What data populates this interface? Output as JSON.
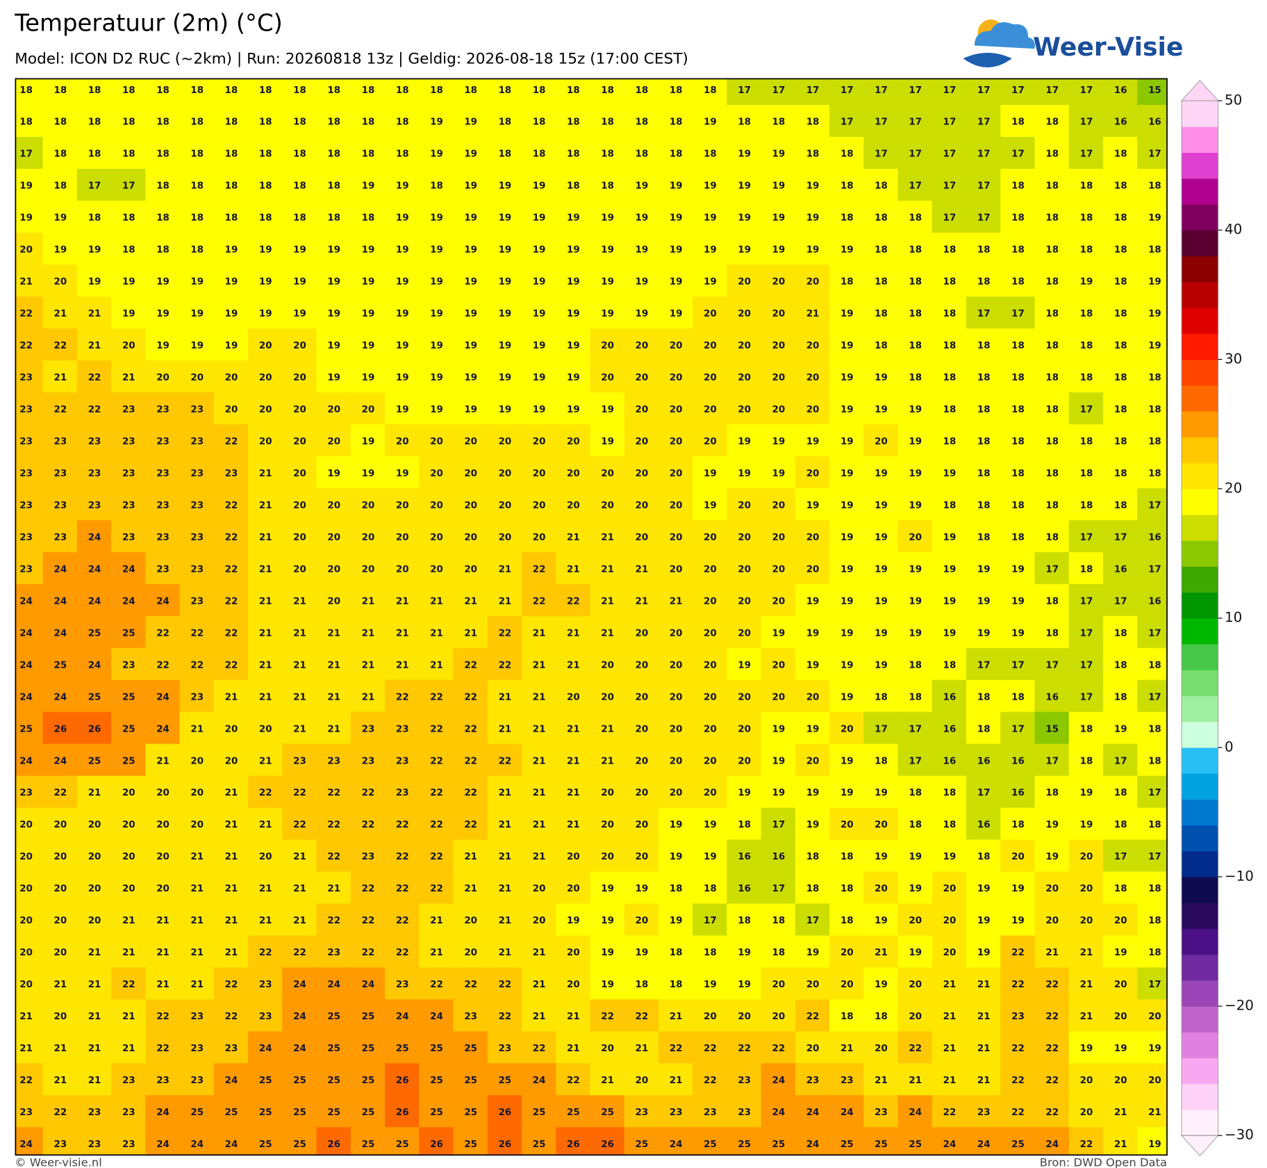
{
  "chart_data": {
    "type": "heatmap",
    "title": "Temperatuur (2m) (°C)",
    "subtitle": "Model: ICON D2 RUC (~2km)  |  Run: 20260818 13z  |  Geldig: 2026-08-18 15z (17:00 CEST)",
    "logo": "Weer-Visie",
    "footer_left": "© Weer-visie.nl",
    "footer_right": "Bron: DWD Open Data",
    "values": [
      [
        18,
        18,
        18,
        18,
        18,
        18,
        18,
        18,
        18,
        18,
        18,
        18,
        18,
        18,
        18,
        18,
        18,
        18,
        18,
        18,
        18,
        17,
        17,
        17,
        17,
        17,
        17,
        17,
        17,
        17,
        17,
        17,
        16,
        15
      ],
      [
        18,
        18,
        18,
        18,
        18,
        18,
        18,
        18,
        18,
        18,
        18,
        18,
        19,
        19,
        18,
        18,
        18,
        18,
        18,
        18,
        19,
        18,
        18,
        18,
        17,
        17,
        17,
        17,
        17,
        18,
        18,
        17,
        16,
        16
      ],
      [
        17,
        18,
        18,
        18,
        18,
        18,
        18,
        18,
        18,
        18,
        18,
        18,
        19,
        19,
        18,
        18,
        18,
        18,
        18,
        18,
        18,
        19,
        19,
        18,
        18,
        17,
        17,
        17,
        17,
        17,
        18,
        17,
        18,
        17
      ],
      [
        19,
        18,
        17,
        17,
        18,
        18,
        18,
        18,
        18,
        18,
        19,
        19,
        18,
        19,
        19,
        19,
        18,
        18,
        19,
        19,
        19,
        19,
        19,
        19,
        18,
        18,
        17,
        17,
        17,
        18,
        18,
        18,
        18,
        18
      ],
      [
        19,
        19,
        18,
        18,
        18,
        18,
        18,
        18,
        18,
        18,
        18,
        19,
        19,
        19,
        19,
        19,
        19,
        19,
        19,
        19,
        19,
        19,
        19,
        19,
        18,
        18,
        18,
        17,
        17,
        18,
        18,
        18,
        18,
        19
      ],
      [
        20,
        19,
        19,
        18,
        18,
        18,
        19,
        19,
        19,
        19,
        19,
        19,
        19,
        19,
        19,
        19,
        19,
        19,
        19,
        19,
        19,
        19,
        19,
        19,
        19,
        18,
        18,
        18,
        18,
        18,
        18,
        18,
        18,
        18
      ],
      [
        21,
        20,
        19,
        19,
        19,
        19,
        19,
        19,
        19,
        19,
        19,
        19,
        19,
        19,
        19,
        19,
        19,
        19,
        19,
        19,
        19,
        20,
        20,
        20,
        18,
        18,
        18,
        18,
        18,
        18,
        18,
        19,
        18,
        19
      ],
      [
        22,
        21,
        21,
        19,
        19,
        19,
        19,
        19,
        19,
        19,
        19,
        19,
        19,
        19,
        19,
        19,
        19,
        19,
        19,
        19,
        20,
        20,
        20,
        21,
        19,
        18,
        18,
        18,
        17,
        17,
        18,
        18,
        18,
        19
      ],
      [
        22,
        22,
        21,
        20,
        19,
        19,
        19,
        20,
        20,
        19,
        19,
        19,
        19,
        19,
        19,
        19,
        19,
        20,
        20,
        20,
        20,
        20,
        20,
        20,
        19,
        18,
        18,
        18,
        18,
        18,
        18,
        18,
        18,
        19
      ],
      [
        23,
        21,
        22,
        21,
        20,
        20,
        20,
        20,
        20,
        19,
        19,
        19,
        19,
        19,
        19,
        19,
        19,
        20,
        20,
        20,
        20,
        20,
        20,
        20,
        19,
        19,
        18,
        18,
        18,
        18,
        18,
        18,
        18,
        18
      ],
      [
        23,
        22,
        22,
        23,
        23,
        23,
        20,
        20,
        20,
        20,
        20,
        19,
        19,
        19,
        19,
        19,
        19,
        19,
        20,
        20,
        20,
        20,
        20,
        20,
        19,
        19,
        19,
        18,
        18,
        18,
        18,
        17,
        18,
        18
      ],
      [
        23,
        23,
        23,
        23,
        23,
        23,
        22,
        20,
        20,
        20,
        19,
        20,
        20,
        20,
        20,
        20,
        20,
        19,
        20,
        20,
        20,
        19,
        19,
        19,
        19,
        20,
        19,
        18,
        18,
        18,
        18,
        18,
        18,
        18
      ],
      [
        23,
        23,
        23,
        23,
        23,
        23,
        23,
        21,
        20,
        19,
        19,
        19,
        20,
        20,
        20,
        20,
        20,
        20,
        20,
        20,
        19,
        19,
        19,
        20,
        19,
        19,
        19,
        19,
        18,
        18,
        18,
        18,
        18,
        18
      ],
      [
        23,
        23,
        23,
        23,
        23,
        23,
        22,
        21,
        20,
        20,
        20,
        20,
        20,
        20,
        20,
        20,
        20,
        20,
        20,
        20,
        19,
        20,
        20,
        19,
        19,
        19,
        19,
        18,
        18,
        18,
        18,
        18,
        18,
        17
      ],
      [
        23,
        23,
        24,
        23,
        23,
        23,
        22,
        21,
        20,
        20,
        20,
        20,
        20,
        20,
        20,
        20,
        21,
        21,
        20,
        20,
        20,
        20,
        20,
        20,
        19,
        19,
        20,
        19,
        18,
        18,
        18,
        17,
        17,
        16
      ],
      [
        23,
        24,
        24,
        24,
        23,
        23,
        22,
        21,
        20,
        20,
        20,
        20,
        20,
        20,
        21,
        22,
        21,
        21,
        21,
        20,
        20,
        20,
        20,
        20,
        19,
        19,
        19,
        19,
        19,
        19,
        17,
        18,
        16,
        17
      ],
      [
        24,
        24,
        24,
        24,
        24,
        23,
        22,
        21,
        21,
        20,
        21,
        21,
        21,
        21,
        21,
        22,
        22,
        21,
        21,
        21,
        20,
        20,
        20,
        19,
        19,
        19,
        19,
        19,
        19,
        19,
        18,
        17,
        17,
        16
      ],
      [
        24,
        24,
        25,
        25,
        22,
        22,
        22,
        21,
        21,
        21,
        21,
        21,
        21,
        21,
        22,
        21,
        21,
        21,
        20,
        20,
        20,
        20,
        19,
        19,
        19,
        19,
        19,
        19,
        19,
        19,
        18,
        17,
        18,
        17
      ],
      [
        24,
        25,
        24,
        23,
        22,
        22,
        22,
        21,
        21,
        21,
        21,
        21,
        21,
        22,
        22,
        21,
        21,
        20,
        20,
        20,
        20,
        19,
        20,
        19,
        19,
        19,
        18,
        18,
        17,
        17,
        17,
        17,
        18,
        18
      ],
      [
        24,
        24,
        25,
        25,
        24,
        23,
        21,
        21,
        21,
        21,
        21,
        22,
        22,
        22,
        21,
        21,
        20,
        20,
        20,
        20,
        20,
        20,
        20,
        20,
        19,
        18,
        18,
        16,
        18,
        18,
        16,
        17,
        18,
        17
      ],
      [
        25,
        26,
        26,
        25,
        24,
        21,
        20,
        20,
        21,
        21,
        23,
        23,
        22,
        22,
        21,
        21,
        21,
        21,
        20,
        20,
        20,
        20,
        19,
        19,
        20,
        17,
        17,
        16,
        18,
        17,
        15,
        18,
        19,
        18
      ],
      [
        24,
        24,
        25,
        25,
        21,
        20,
        20,
        21,
        23,
        23,
        23,
        23,
        22,
        22,
        22,
        21,
        21,
        21,
        20,
        20,
        20,
        20,
        19,
        20,
        19,
        18,
        17,
        16,
        16,
        16,
        17,
        18,
        17,
        18
      ],
      [
        23,
        22,
        21,
        20,
        20,
        20,
        21,
        22,
        22,
        22,
        22,
        23,
        22,
        22,
        21,
        21,
        21,
        20,
        20,
        20,
        20,
        19,
        19,
        19,
        19,
        19,
        18,
        18,
        17,
        16,
        18,
        19,
        18,
        17
      ],
      [
        20,
        20,
        20,
        20,
        20,
        20,
        21,
        21,
        22,
        22,
        22,
        22,
        22,
        22,
        21,
        21,
        21,
        20,
        20,
        19,
        19,
        18,
        17,
        19,
        20,
        20,
        18,
        18,
        16,
        18,
        19,
        19,
        18,
        18
      ],
      [
        20,
        20,
        20,
        20,
        20,
        21,
        21,
        20,
        21,
        22,
        23,
        22,
        22,
        21,
        21,
        21,
        20,
        20,
        20,
        19,
        19,
        16,
        16,
        18,
        18,
        19,
        19,
        19,
        18,
        20,
        19,
        20,
        17,
        17
      ],
      [
        20,
        20,
        20,
        20,
        20,
        21,
        21,
        21,
        21,
        21,
        22,
        22,
        22,
        21,
        21,
        20,
        20,
        19,
        19,
        18,
        18,
        16,
        17,
        18,
        18,
        20,
        19,
        20,
        19,
        19,
        20,
        20,
        18,
        18
      ],
      [
        20,
        20,
        20,
        21,
        21,
        21,
        21,
        21,
        21,
        22,
        22,
        22,
        21,
        20,
        21,
        20,
        19,
        19,
        20,
        19,
        17,
        18,
        18,
        17,
        18,
        19,
        20,
        20,
        19,
        19,
        20,
        20,
        20,
        18
      ],
      [
        20,
        20,
        21,
        21,
        21,
        21,
        21,
        22,
        22,
        23,
        22,
        22,
        21,
        20,
        21,
        21,
        20,
        19,
        19,
        18,
        18,
        19,
        18,
        19,
        20,
        21,
        19,
        20,
        19,
        22,
        21,
        21,
        19,
        18
      ],
      [
        20,
        21,
        21,
        22,
        21,
        21,
        22,
        23,
        24,
        24,
        24,
        23,
        22,
        22,
        22,
        21,
        20,
        19,
        18,
        18,
        19,
        19,
        20,
        20,
        20,
        19,
        20,
        21,
        21,
        22,
        22,
        21,
        20,
        17
      ],
      [
        21,
        20,
        21,
        21,
        22,
        23,
        22,
        23,
        24,
        25,
        25,
        24,
        24,
        23,
        22,
        21,
        21,
        22,
        22,
        21,
        20,
        20,
        20,
        22,
        18,
        18,
        20,
        21,
        21,
        23,
        22,
        21,
        20,
        20
      ],
      [
        21,
        21,
        21,
        21,
        22,
        23,
        23,
        24,
        24,
        25,
        25,
        25,
        25,
        25,
        23,
        22,
        21,
        20,
        21,
        22,
        22,
        22,
        22,
        20,
        21,
        20,
        22,
        21,
        21,
        22,
        22,
        19,
        19,
        19
      ],
      [
        22,
        21,
        21,
        23,
        23,
        23,
        24,
        25,
        25,
        25,
        25,
        26,
        25,
        25,
        25,
        24,
        22,
        21,
        20,
        21,
        22,
        23,
        24,
        23,
        23,
        21,
        21,
        21,
        21,
        22,
        22,
        20,
        20,
        20
      ],
      [
        23,
        22,
        23,
        23,
        24,
        25,
        25,
        25,
        25,
        25,
        25,
        26,
        25,
        25,
        26,
        25,
        25,
        25,
        23,
        23,
        23,
        23,
        24,
        24,
        24,
        23,
        24,
        22,
        23,
        22,
        22,
        20,
        21,
        21
      ],
      [
        24,
        23,
        23,
        23,
        24,
        24,
        24,
        25,
        25,
        26,
        25,
        25,
        26,
        25,
        26,
        25,
        26,
        26,
        25,
        24,
        25,
        25,
        25,
        24,
        25,
        25,
        25,
        24,
        24,
        25,
        24,
        22,
        21,
        19
      ]
    ],
    "colorbar": {
      "lim": [
        -30,
        50
      ],
      "ticks": [
        {
          "value": -30,
          "label": "−30"
        },
        {
          "value": -20,
          "label": "−20"
        },
        {
          "value": -10,
          "label": "−10"
        },
        0,
        10,
        20,
        30,
        40,
        50
      ],
      "colors": [
        "#fff0fb",
        "#ffd2f7",
        "#f8a8f0",
        "#e080df",
        "#c064c9",
        "#9a46b8",
        "#6e2a9e",
        "#4b0f86",
        "#2a0a5c",
        "#0d0a50",
        "#002b8a",
        "#0050b0",
        "#0078d0",
        "#00a3e0",
        "#29c0f5",
        "#ccffdd",
        "#a0eea0",
        "#78dd70",
        "#48c848",
        "#00b800",
        "#009600",
        "#3da800",
        "#8cc800",
        "#ccdd00",
        "#ffff00",
        "#ffe600",
        "#ffc800",
        "#ff9a00",
        "#ff6a00",
        "#ff4500",
        "#ff1a00",
        "#e00000",
        "#b80000",
        "#8c0000",
        "#5a0030",
        "#800060",
        "#b00090",
        "#e040d0",
        "#ff8ee8",
        "#ffd6f6"
      ]
    }
  }
}
